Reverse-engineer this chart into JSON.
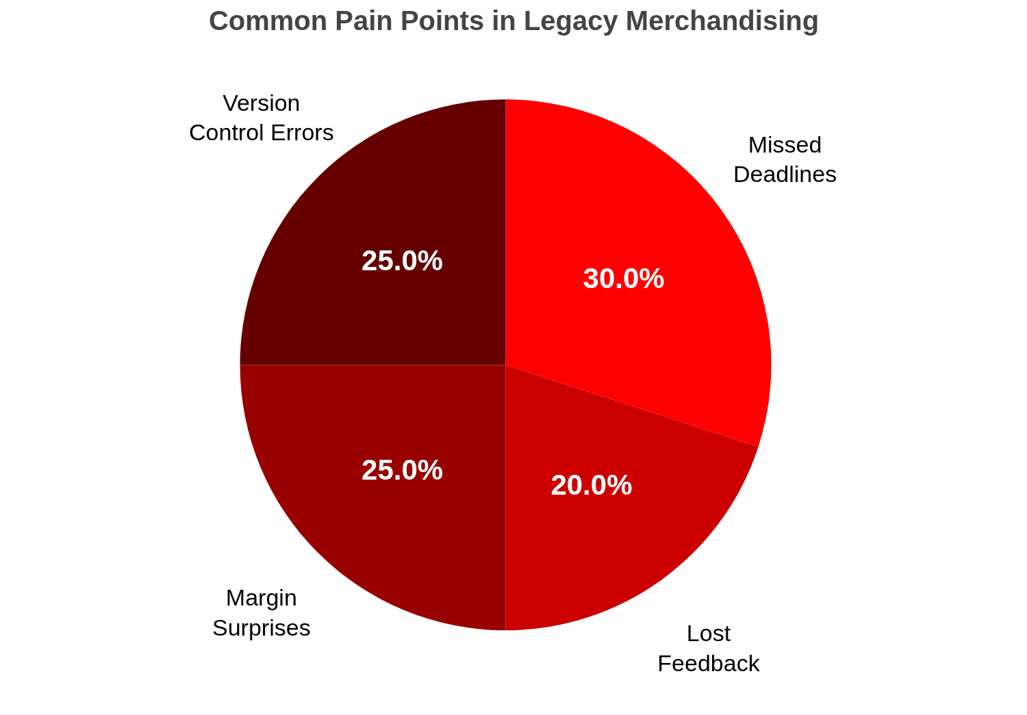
{
  "chart_data": {
    "type": "pie",
    "title": "Common Pain Points in Legacy Merchandising",
    "categories": [
      "Missed\nDeadlines",
      "Lost\nFeedback",
      "Margin\nSurprises",
      "Version\nControl Errors"
    ],
    "values": [
      30,
      20,
      25,
      25
    ],
    "colors": [
      "#ff0000",
      "#cc0000",
      "#990000",
      "#660000"
    ],
    "value_labels": [
      "30.0%",
      "20.0%",
      "25.0%",
      "25.0%"
    ],
    "legend": false
  }
}
